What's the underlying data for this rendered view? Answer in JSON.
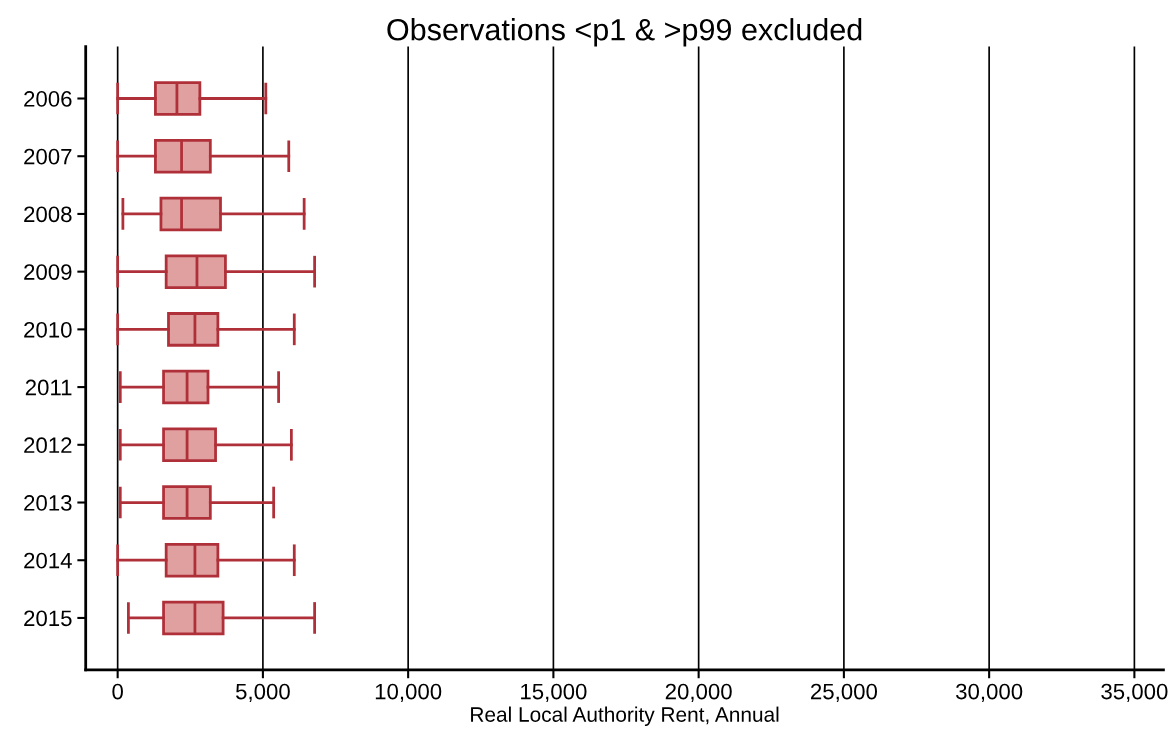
{
  "chart_data": {
    "type": "box",
    "title": "Observations <p1 & >p99 excluded",
    "xlabel": "Real Local Authority Rent, Annual",
    "orientation": "horizontal",
    "categories": [
      "2006",
      "2007",
      "2008",
      "2009",
      "2010",
      "2011",
      "2012",
      "2013",
      "2014",
      "2015"
    ],
    "series": [
      {
        "color": "#e0a0a0",
        "boxes": [
          {
            "low": 0,
            "q1": 1300,
            "median": 2040,
            "q3": 2830,
            "high": 5100
          },
          {
            "low": 0,
            "q1": 1300,
            "median": 2200,
            "q3": 3190,
            "high": 5890
          },
          {
            "low": 180,
            "q1": 1490,
            "median": 2200,
            "q3": 3540,
            "high": 6420
          },
          {
            "low": 0,
            "q1": 1670,
            "median": 2730,
            "q3": 3710,
            "high": 6780
          },
          {
            "low": 0,
            "q1": 1750,
            "median": 2660,
            "q3": 3450,
            "high": 6080
          },
          {
            "low": 90,
            "q1": 1580,
            "median": 2390,
            "q3": 3110,
            "high": 5540
          },
          {
            "low": 90,
            "q1": 1580,
            "median": 2390,
            "q3": 3370,
            "high": 5980
          },
          {
            "low": 90,
            "q1": 1580,
            "median": 2390,
            "q3": 3190,
            "high": 5370
          },
          {
            "low": 0,
            "q1": 1670,
            "median": 2660,
            "q3": 3450,
            "high": 6080
          },
          {
            "low": 370,
            "q1": 1580,
            "median": 2660,
            "q3": 3630,
            "high": 6780
          }
        ]
      }
    ],
    "xlim": [
      -1100,
      36000
    ],
    "xticks": [
      {
        "value": 0,
        "label": "0"
      },
      {
        "value": 5000,
        "label": "5,000"
      },
      {
        "value": 10000,
        "label": "10,000"
      },
      {
        "value": 15000,
        "label": "15,000"
      },
      {
        "value": 20000,
        "label": "20,000"
      },
      {
        "value": 25000,
        "label": "25,000"
      },
      {
        "value": 30000,
        "label": "30,000"
      },
      {
        "value": 35000,
        "label": "35,000"
      }
    ],
    "grid": "x",
    "legend": false
  }
}
